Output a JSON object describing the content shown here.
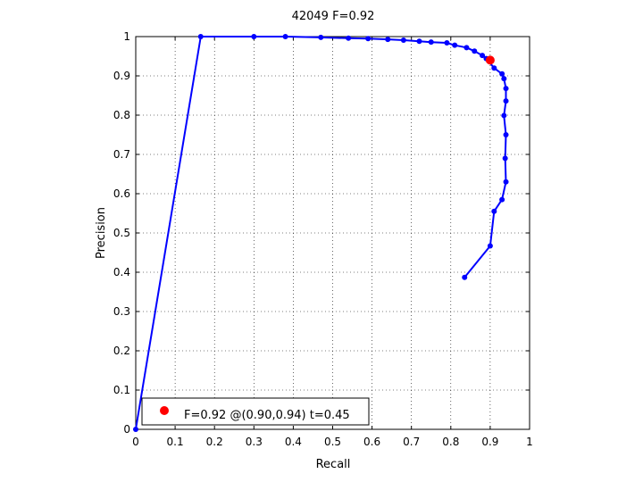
{
  "chart_data": {
    "type": "line",
    "title": "42049 F=0.92",
    "xlabel": "Recall",
    "ylabel": "Precision",
    "xlim": [
      0,
      1
    ],
    "ylim": [
      0,
      1
    ],
    "xticks": [
      0,
      0.1,
      0.2,
      0.3,
      0.4,
      0.5,
      0.6,
      0.7,
      0.8,
      0.9,
      1
    ],
    "xtick_labels": [
      "0",
      "0.1",
      "0.2",
      "0.3",
      "0.4",
      "0.5",
      "0.6",
      "0.7",
      "0.8",
      "0.9",
      "1"
    ],
    "yticks": [
      0,
      0.1,
      0.2,
      0.3,
      0.4,
      0.5,
      0.6,
      0.7,
      0.8,
      0.9,
      1
    ],
    "ytick_labels": [
      "0",
      "0.1",
      "0.2",
      "0.3",
      "0.4",
      "0.5",
      "0.6",
      "0.7",
      "0.8",
      "0.9",
      "1"
    ],
    "grid": true,
    "legend_position": "bottom-left",
    "series": [
      {
        "color": "#0000ff",
        "points": [
          [
            0,
            0
          ],
          [
            0.165,
            1.0
          ],
          [
            0.3,
            1.0
          ],
          [
            0.38,
            1.0
          ],
          [
            0.47,
            0.998
          ],
          [
            0.54,
            0.996
          ],
          [
            0.59,
            0.995
          ],
          [
            0.64,
            0.993
          ],
          [
            0.68,
            0.991
          ],
          [
            0.72,
            0.988
          ],
          [
            0.75,
            0.986
          ],
          [
            0.79,
            0.984
          ],
          [
            0.81,
            0.978
          ],
          [
            0.84,
            0.972
          ],
          [
            0.86,
            0.963
          ],
          [
            0.88,
            0.952
          ],
          [
            0.89,
            0.944
          ],
          [
            0.91,
            0.92
          ],
          [
            0.93,
            0.905
          ],
          [
            0.935,
            0.893
          ],
          [
            0.94,
            0.868
          ],
          [
            0.94,
            0.836
          ],
          [
            0.935,
            0.799
          ],
          [
            0.94,
            0.75
          ],
          [
            0.938,
            0.69
          ],
          [
            0.94,
            0.63
          ],
          [
            0.93,
            0.585
          ],
          [
            0.91,
            0.555
          ],
          [
            0.9,
            0.467
          ],
          [
            0.835,
            0.387
          ]
        ]
      }
    ],
    "best_point": {
      "x": 0.9,
      "y": 0.94,
      "color": "#ff0000"
    },
    "legend_text": "F=0.92 @(0.90,0.94) t=0.45"
  }
}
